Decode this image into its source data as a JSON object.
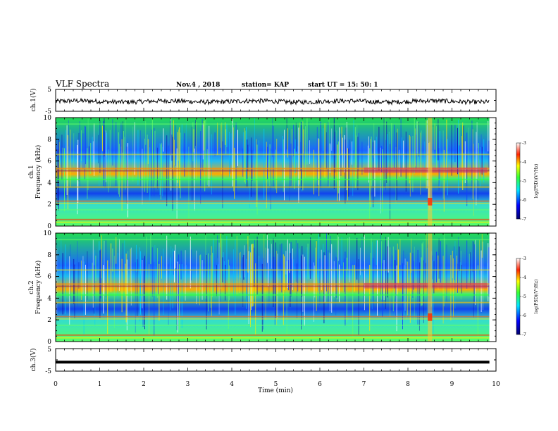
{
  "header": {
    "title": "VLF Spectra",
    "date": "Nov.4 , 2018",
    "station": "station= KAP",
    "start": "start UT = 15: 50: 1"
  },
  "chart_data": [
    {
      "type": "line",
      "panel": "ch1-voltage",
      "ylabel": "ch.1(V)",
      "ylim": [
        -5,
        5
      ],
      "yticks": [
        "5",
        "-5"
      ],
      "xlim": [
        0,
        10
      ],
      "x_end": 9.85,
      "trace_level": -0.5,
      "trace_amplitude": 1.5
    },
    {
      "type": "heatmap",
      "panel": "ch1-spectrogram",
      "ylabel": "ch.1",
      "ylabel2": "Frequency (kHz)",
      "ylim": [
        0,
        10
      ],
      "yticks": [
        "0",
        "2",
        "4",
        "6",
        "8",
        "10"
      ],
      "xlim": [
        0,
        10
      ],
      "x_end": 9.85,
      "colorbar": {
        "label": "log(PSD)(V²/Hz)",
        "range": [
          -7,
          -3
        ],
        "ticks": [
          "-3",
          "-4",
          "-5",
          "-6",
          "-7"
        ]
      }
    },
    {
      "type": "heatmap",
      "panel": "ch2-spectrogram",
      "ylabel": "ch.2",
      "ylabel2": "Frequency (kHz)",
      "ylim": [
        0,
        10
      ],
      "yticks": [
        "0",
        "2",
        "4",
        "6",
        "8",
        "10"
      ],
      "xlim": [
        0,
        10
      ],
      "x_end": 9.85,
      "colorbar": {
        "label": "log(PSD)(V²/Hz)",
        "range": [
          -7,
          -3
        ],
        "ticks": [
          "-3",
          "-4",
          "-5",
          "-6",
          "-7"
        ]
      }
    },
    {
      "type": "line",
      "panel": "ch3-voltage",
      "ylabel": "ch.3(V)",
      "ylim": [
        -5,
        5
      ],
      "yticks": [
        "5",
        "-5"
      ],
      "xlim": [
        0,
        10
      ],
      "x_end": 9.85,
      "trace_level": -1
    }
  ],
  "x_axis": {
    "label": "Time (min)",
    "ticks": [
      "0",
      "1",
      "2",
      "3",
      "4",
      "5",
      "6",
      "7",
      "8",
      "9",
      "10"
    ]
  }
}
